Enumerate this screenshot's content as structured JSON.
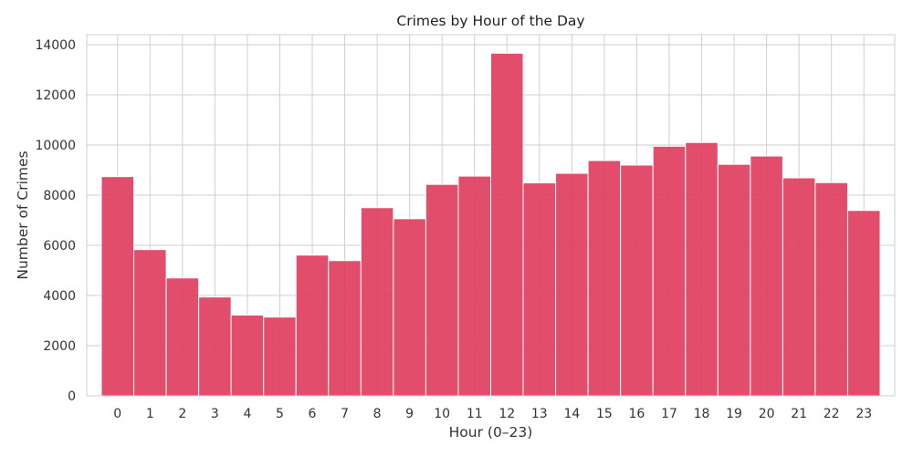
{
  "chart_data": {
    "type": "bar",
    "title": "Crimes by Hour of the Day",
    "xlabel": "Hour (0–23)",
    "ylabel": "Number of Crimes",
    "categories": [
      "0",
      "1",
      "2",
      "3",
      "4",
      "5",
      "6",
      "7",
      "8",
      "9",
      "10",
      "11",
      "12",
      "13",
      "14",
      "15",
      "16",
      "17",
      "18",
      "19",
      "20",
      "21",
      "22",
      "23"
    ],
    "values": [
      8740,
      5830,
      4700,
      3940,
      3220,
      3140,
      5610,
      5390,
      7500,
      7060,
      8430,
      8760,
      13660,
      8490,
      8870,
      9380,
      9200,
      9950,
      10100,
      9230,
      9560,
      8690,
      8500,
      7390
    ],
    "ylim": [
      0,
      14400
    ],
    "yticks": [
      0,
      2000,
      4000,
      6000,
      8000,
      10000,
      12000,
      14000
    ],
    "ytick_labels": [
      "0",
      "2000",
      "4000",
      "6000",
      "8000",
      "10000",
      "12000",
      "14000"
    ],
    "grid": true,
    "legend": "none",
    "bar_color": "#e03a5c"
  }
}
